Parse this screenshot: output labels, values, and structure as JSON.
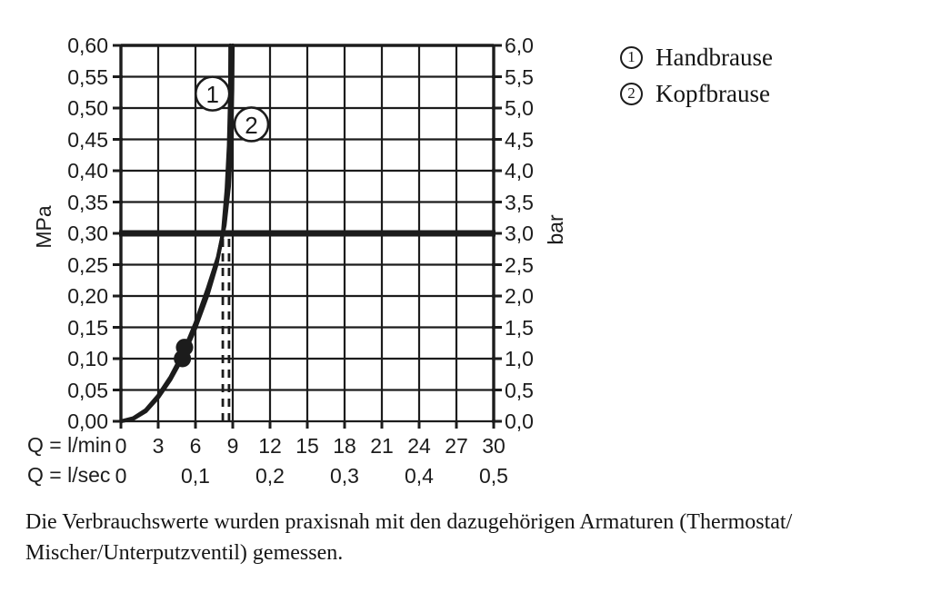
{
  "figure": {
    "background": "#ffffff",
    "ink": "#1c1c1c",
    "text_color": "#141414"
  },
  "chart_data": {
    "type": "line",
    "title": "",
    "grid": "on",
    "x_axis": {
      "label_primary": "Q = l/min",
      "range_lmin": [
        0,
        30
      ],
      "ticks_primary": [
        "0",
        "3",
        "6",
        "9",
        "12",
        "15",
        "18",
        "21",
        "24",
        "27",
        "30"
      ],
      "label_secondary": "Q = l/sec",
      "ticks_secondary": [
        "0",
        "0,1",
        "0,2",
        "0,3",
        "0,4",
        "0,5"
      ]
    },
    "y_axis_left": {
      "label": "MPa",
      "range_mpa": [
        0,
        0.6
      ],
      "ticks": [
        "0,60",
        "0,55",
        "0,50",
        "0,45",
        "0,40",
        "0,35",
        "0,30",
        "0,25",
        "0,20",
        "0,15",
        "0,10",
        "0,05",
        "0,00"
      ]
    },
    "y_axis_right": {
      "label": "bar",
      "range_bar": [
        0,
        6
      ],
      "ticks": [
        "6,0",
        "5,5",
        "5,0",
        "4,5",
        "4,0",
        "3,5",
        "3,0",
        "2,5",
        "2,0",
        "1,5",
        "1,0",
        "0,5",
        "0,0"
      ]
    },
    "pressure_reference_mpa": 0.3,
    "dashed_flow_guides_lmin": [
      8.2,
      8.7
    ],
    "measured_points_lmin_mpa": [
      [
        4.95,
        0.1
      ],
      [
        5.12,
        0.118
      ]
    ],
    "series": [
      {
        "id": "1",
        "name": "Handbrause",
        "points_lmin_mpa": [
          [
            0,
            0
          ],
          [
            1,
            0.004
          ],
          [
            2,
            0.016
          ],
          [
            3,
            0.038
          ],
          [
            4,
            0.067
          ],
          [
            5,
            0.103
          ],
          [
            6,
            0.149
          ],
          [
            7,
            0.203
          ],
          [
            7.7,
            0.25
          ],
          [
            8.2,
            0.3
          ],
          [
            8.5,
            0.37
          ],
          [
            8.68,
            0.44
          ],
          [
            8.78,
            0.52
          ],
          [
            8.8,
            0.6
          ]
        ],
        "callout": {
          "x": 7.37,
          "y": 0.523
        }
      },
      {
        "id": "2",
        "name": "Kopfbrause",
        "points_lmin_mpa": [
          [
            0,
            0
          ],
          [
            1,
            0.005
          ],
          [
            2,
            0.018
          ],
          [
            3,
            0.041
          ],
          [
            4,
            0.071
          ],
          [
            5,
            0.109
          ],
          [
            6,
            0.157
          ],
          [
            7,
            0.213
          ],
          [
            7.8,
            0.262
          ],
          [
            8.35,
            0.313
          ],
          [
            8.7,
            0.375
          ],
          [
            8.88,
            0.45
          ],
          [
            8.97,
            0.53
          ],
          [
            9.0,
            0.6
          ]
        ],
        "callout": {
          "x": 10.5,
          "y": 0.474
        }
      }
    ]
  },
  "footnote": {
    "line1": "Die Verbrauchswerte wurden praxisnah mit den dazugehörigen Armaturen (Thermostat/",
    "line2": "Mischer/Unterputzventil) gemessen."
  }
}
